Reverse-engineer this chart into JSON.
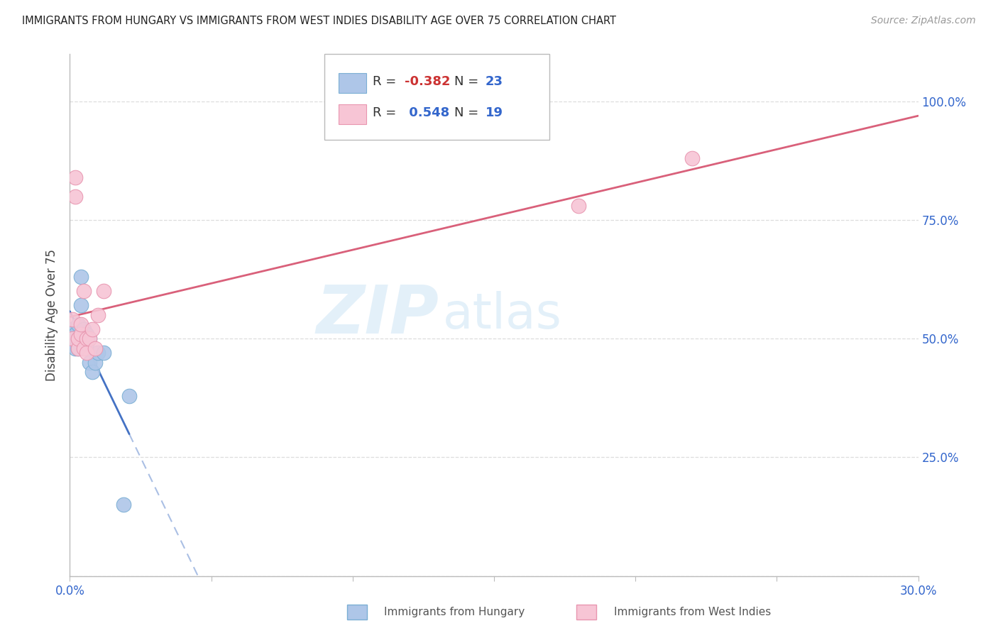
{
  "title": "IMMIGRANTS FROM HUNGARY VS IMMIGRANTS FROM WEST INDIES DISABILITY AGE OVER 75 CORRELATION CHART",
  "source": "Source: ZipAtlas.com",
  "ylabel": "Disability Age Over 75",
  "xlim": [
    0.0,
    0.3
  ],
  "ylim": [
    0.0,
    1.1
  ],
  "yticks": [
    0.0,
    0.25,
    0.5,
    0.75,
    1.0
  ],
  "ytick_labels": [
    "",
    "25.0%",
    "50.0%",
    "75.0%",
    "100.0%"
  ],
  "xticks": [
    0.0,
    0.05,
    0.1,
    0.15,
    0.2,
    0.25,
    0.3
  ],
  "xtick_labels": [
    "0.0%",
    "",
    "",
    "",
    "",
    "",
    "30.0%"
  ],
  "hungary_color": "#aec6e8",
  "hungary_edge": "#7bafd4",
  "west_indies_color": "#f7c5d5",
  "west_indies_edge": "#e896b0",
  "hungary_line_color": "#4472c4",
  "west_indies_line_color": "#d9607a",
  "hungary_R": -0.382,
  "hungary_N": 23,
  "west_indies_R": 0.548,
  "west_indies_N": 19,
  "hungary_x": [
    0.001,
    0.001,
    0.002,
    0.002,
    0.002,
    0.003,
    0.003,
    0.003,
    0.004,
    0.004,
    0.005,
    0.005,
    0.005,
    0.006,
    0.006,
    0.007,
    0.007,
    0.008,
    0.009,
    0.01,
    0.012,
    0.019,
    0.021
  ],
  "hungary_y": [
    0.49,
    0.52,
    0.5,
    0.51,
    0.48,
    0.5,
    0.48,
    0.53,
    0.63,
    0.57,
    0.5,
    0.51,
    0.52,
    0.49,
    0.51,
    0.5,
    0.45,
    0.43,
    0.45,
    0.47,
    0.47,
    0.15,
    0.38
  ],
  "west_indies_x": [
    0.001,
    0.001,
    0.002,
    0.002,
    0.003,
    0.003,
    0.004,
    0.004,
    0.005,
    0.005,
    0.006,
    0.006,
    0.007,
    0.008,
    0.009,
    0.01,
    0.012,
    0.18,
    0.22
  ],
  "west_indies_y": [
    0.5,
    0.54,
    0.84,
    0.8,
    0.48,
    0.5,
    0.51,
    0.53,
    0.48,
    0.6,
    0.47,
    0.5,
    0.5,
    0.52,
    0.48,
    0.55,
    0.6,
    0.78,
    0.88
  ],
  "watermark_zip": "ZIP",
  "watermark_atlas": "atlas",
  "legend_label_hungary": "Immigrants from Hungary",
  "legend_label_west_indies": "Immigrants from West Indies"
}
